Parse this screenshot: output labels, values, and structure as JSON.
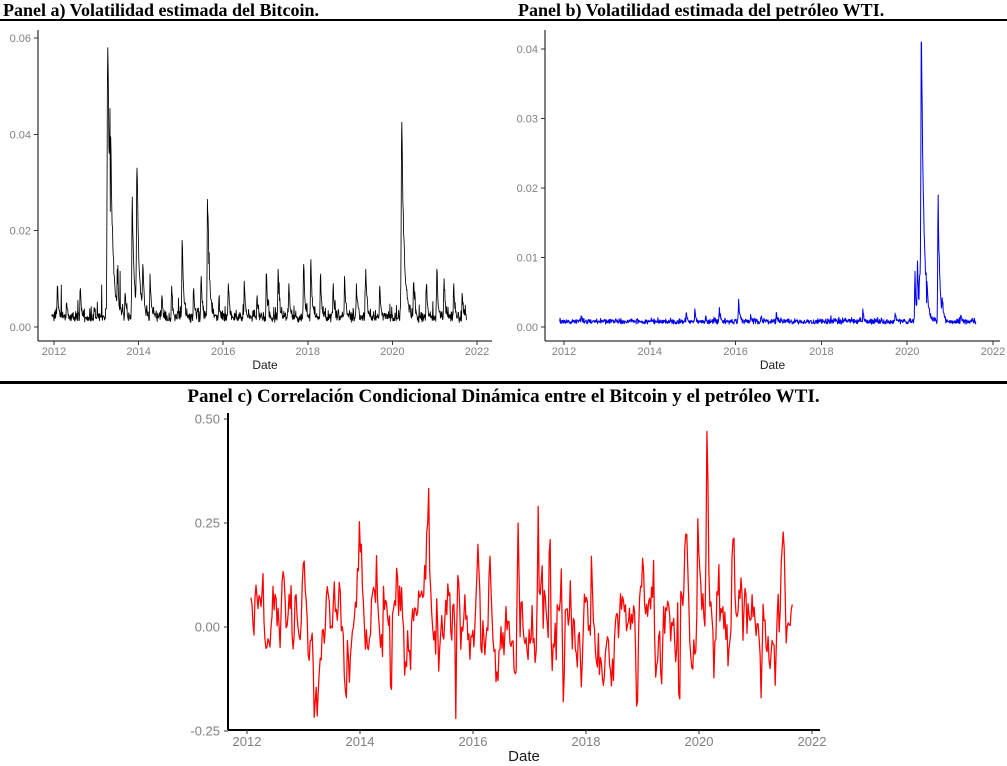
{
  "figure": {
    "background": "#ffffff",
    "divider_color": "#000000",
    "tick_label_color": "#808080",
    "axis_color": "#000000"
  },
  "chart_data": [
    {
      "type": "line",
      "panel": "a",
      "title": "Panel a) Volatilidad estimada del Bitcoin.",
      "xlabel": "Date",
      "ylabel": "",
      "color": "#000000",
      "legend": "none",
      "grid": "off",
      "x_ticks": [
        2012,
        2014,
        2016,
        2018,
        2020,
        2022
      ],
      "y_ticks": [
        0.0,
        0.02,
        0.04,
        0.06
      ],
      "ylim": [
        -0.003,
        0.062
      ],
      "xlim": [
        2011.6,
        2022.3
      ],
      "data_x_range": [
        2011.95,
        2021.75
      ],
      "baseline": 0.0015,
      "noise": 0.0011,
      "seed": 7,
      "n_points": 1150,
      "clip": [
        0.0004,
        0.0582
      ],
      "spikes": [
        {
          "x": 2012.08,
          "y": 0.0085
        },
        {
          "x": 2012.3,
          "y": 0.005
        },
        {
          "x": 2012.62,
          "y": 0.008
        },
        {
          "x": 2012.95,
          "y": 0.004
        },
        {
          "x": 2013.27,
          "y": 0.058
        },
        {
          "x": 2013.33,
          "y": 0.024
        },
        {
          "x": 2013.5,
          "y": 0.009
        },
        {
          "x": 2013.68,
          "y": 0.007
        },
        {
          "x": 2013.85,
          "y": 0.027
        },
        {
          "x": 2013.96,
          "y": 0.033
        },
        {
          "x": 2014.1,
          "y": 0.013
        },
        {
          "x": 2014.27,
          "y": 0.011
        },
        {
          "x": 2014.55,
          "y": 0.0065
        },
        {
          "x": 2014.78,
          "y": 0.0085
        },
        {
          "x": 2015.03,
          "y": 0.018
        },
        {
          "x": 2015.3,
          "y": 0.008
        },
        {
          "x": 2015.48,
          "y": 0.0105
        },
        {
          "x": 2015.63,
          "y": 0.0265
        },
        {
          "x": 2015.9,
          "y": 0.006
        },
        {
          "x": 2016.12,
          "y": 0.009
        },
        {
          "x": 2016.5,
          "y": 0.0095
        },
        {
          "x": 2016.8,
          "y": 0.0065
        },
        {
          "x": 2017.02,
          "y": 0.011
        },
        {
          "x": 2017.3,
          "y": 0.012
        },
        {
          "x": 2017.55,
          "y": 0.009
        },
        {
          "x": 2017.9,
          "y": 0.013
        },
        {
          "x": 2018.07,
          "y": 0.014
        },
        {
          "x": 2018.3,
          "y": 0.011
        },
        {
          "x": 2018.6,
          "y": 0.009
        },
        {
          "x": 2018.87,
          "y": 0.0105
        },
        {
          "x": 2019.15,
          "y": 0.009
        },
        {
          "x": 2019.37,
          "y": 0.012
        },
        {
          "x": 2019.7,
          "y": 0.0085
        },
        {
          "x": 2020.22,
          "y": 0.0425
        },
        {
          "x": 2020.5,
          "y": 0.009
        },
        {
          "x": 2020.8,
          "y": 0.0085
        },
        {
          "x": 2021.05,
          "y": 0.012
        },
        {
          "x": 2021.22,
          "y": 0.01
        },
        {
          "x": 2021.45,
          "y": 0.009
        },
        {
          "x": 2021.65,
          "y": 0.007
        }
      ]
    },
    {
      "type": "line",
      "panel": "b",
      "title": "Panel b) Volatilidad estimada del petróleo WTI.",
      "xlabel": "Date",
      "ylabel": "",
      "color": "#0000EE",
      "legend": "none",
      "grid": "off",
      "x_ticks": [
        2012,
        2014,
        2016,
        2018,
        2020,
        2022
      ],
      "y_ticks": [
        0.0,
        0.01,
        0.02,
        0.03,
        0.04
      ],
      "ylim": [
        -0.002,
        0.043
      ],
      "xlim": [
        2011.6,
        2022.3
      ],
      "data_x_range": [
        2011.9,
        2021.6
      ],
      "baseline": 0.0007,
      "noise": 0.00018,
      "seed": 13,
      "n_points": 1150,
      "clip": [
        0.0003,
        0.041
      ],
      "spikes": [
        {
          "x": 2012.4,
          "y": 0.0016
        },
        {
          "x": 2013.2,
          "y": 0.0011
        },
        {
          "x": 2014.85,
          "y": 0.002
        },
        {
          "x": 2015.05,
          "y": 0.0026
        },
        {
          "x": 2015.3,
          "y": 0.0016
        },
        {
          "x": 2015.62,
          "y": 0.0028
        },
        {
          "x": 2016.07,
          "y": 0.004
        },
        {
          "x": 2016.35,
          "y": 0.0018
        },
        {
          "x": 2016.6,
          "y": 0.0016
        },
        {
          "x": 2016.95,
          "y": 0.0021
        },
        {
          "x": 2017.5,
          "y": 0.001
        },
        {
          "x": 2018.3,
          "y": 0.0011
        },
        {
          "x": 2018.97,
          "y": 0.0026
        },
        {
          "x": 2019.4,
          "y": 0.0013
        },
        {
          "x": 2019.72,
          "y": 0.002
        },
        {
          "x": 2020.18,
          "y": 0.008
        },
        {
          "x": 2020.24,
          "y": 0.0095
        },
        {
          "x": 2020.29,
          "y": 0.0075
        },
        {
          "x": 2020.33,
          "y": 0.041
        },
        {
          "x": 2020.45,
          "y": 0.0035
        },
        {
          "x": 2020.72,
          "y": 0.019
        },
        {
          "x": 2020.82,
          "y": 0.0035
        },
        {
          "x": 2021.25,
          "y": 0.0017
        }
      ]
    },
    {
      "type": "line",
      "panel": "c",
      "title": "Panel c) Correlación Condicional Dinámica entre el Bitcoin y el petróleo WTI.",
      "xlabel": "Date",
      "ylabel": "",
      "color": "#FF0000",
      "legend": "none",
      "grid": "off",
      "x_ticks": [
        2012,
        2014,
        2016,
        2018,
        2020,
        2022
      ],
      "y_ticks": [
        -0.25,
        0.0,
        0.25,
        0.5
      ],
      "ylim": [
        -0.25,
        0.5
      ],
      "xlim": [
        2011.7,
        2022.1
      ],
      "data_x_range": [
        2012.07,
        2021.65
      ],
      "mean": 0.02,
      "phi": 0.7,
      "sigma": 0.048,
      "seed": 29,
      "n_points": 540,
      "clip": [
        -0.224,
        0.471
      ],
      "spikes": [
        {
          "x": 2013.0,
          "y": 0.15
        },
        {
          "x": 2013.75,
          "y": -0.17
        },
        {
          "x": 2014.0,
          "y": 0.18
        },
        {
          "x": 2014.55,
          "y": -0.15
        },
        {
          "x": 2015.2,
          "y": 0.25
        },
        {
          "x": 2015.7,
          "y": -0.22
        },
        {
          "x": 2016.3,
          "y": 0.17
        },
        {
          "x": 2016.8,
          "y": 0.25
        },
        {
          "x": 2017.15,
          "y": 0.29
        },
        {
          "x": 2017.36,
          "y": 0.21
        },
        {
          "x": 2017.6,
          "y": -0.18
        },
        {
          "x": 2018.1,
          "y": 0.17
        },
        {
          "x": 2018.9,
          "y": -0.19
        },
        {
          "x": 2019.2,
          "y": 0.16
        },
        {
          "x": 2019.65,
          "y": -0.16
        },
        {
          "x": 2019.98,
          "y": 0.26
        },
        {
          "x": 2020.14,
          "y": 0.47
        },
        {
          "x": 2020.35,
          "y": 0.15
        },
        {
          "x": 2020.6,
          "y": 0.21
        },
        {
          "x": 2021.1,
          "y": -0.17
        },
        {
          "x": 2021.35,
          "y": -0.14
        },
        {
          "x": 2021.5,
          "y": 0.19
        }
      ]
    }
  ]
}
